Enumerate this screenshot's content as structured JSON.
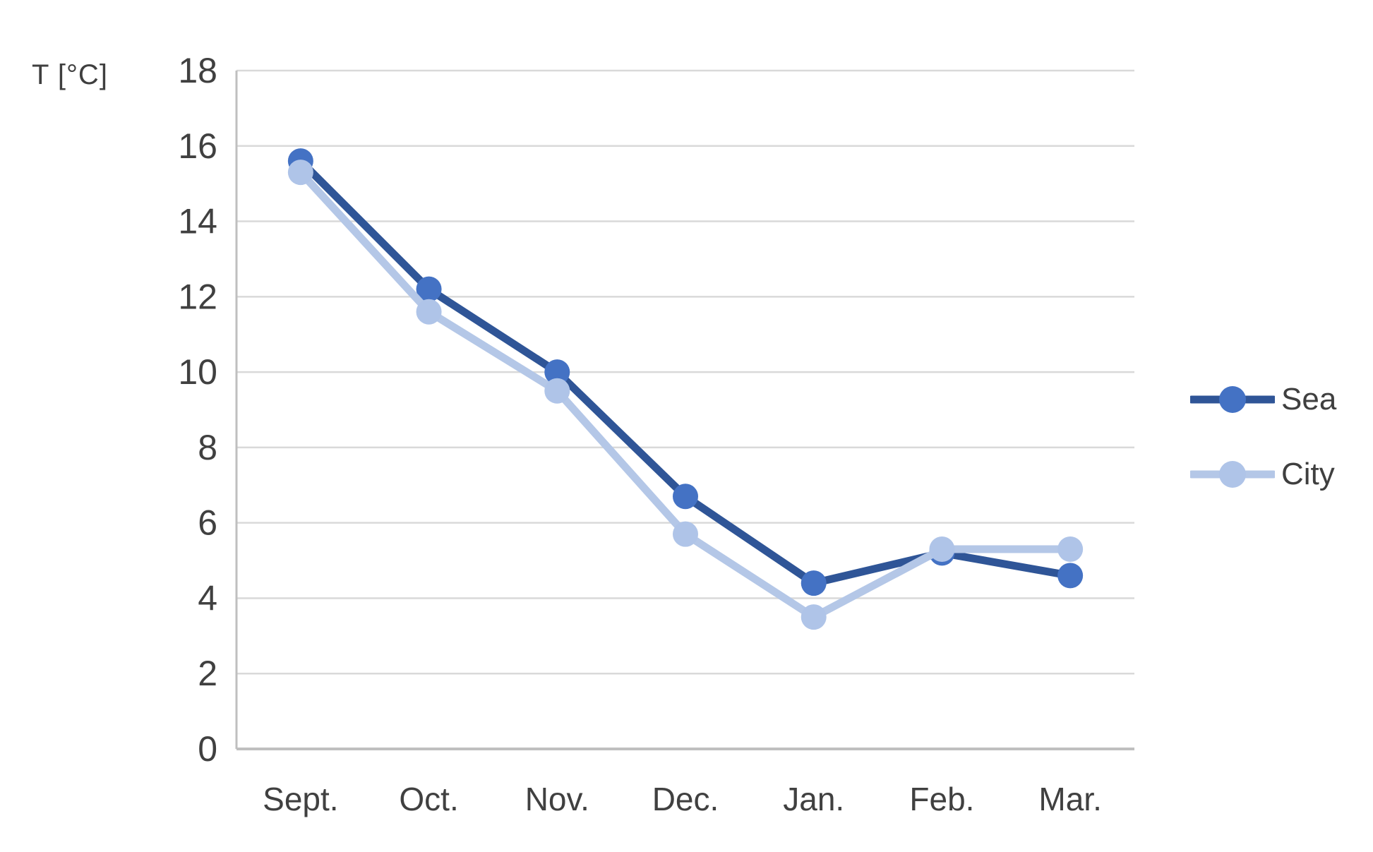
{
  "chart_data": {
    "type": "line",
    "title": "",
    "xlabel": "",
    "ylabel": "T [°C]",
    "categories": [
      "Sept.",
      "Oct.",
      "Nov.",
      "Dec.",
      "Jan.",
      "Feb.",
      "Mar."
    ],
    "series": [
      {
        "name": "Sea",
        "values": [
          15.6,
          12.2,
          10.0,
          6.7,
          4.4,
          5.2,
          4.6
        ],
        "line_color": "#2F5597",
        "marker_color": "#4472C4"
      },
      {
        "name": "City",
        "values": [
          15.3,
          11.6,
          9.5,
          5.7,
          3.5,
          5.3,
          5.3
        ],
        "line_color": "#B4C7E7",
        "marker_color": "#AFC4E8"
      }
    ],
    "ylim": [
      0,
      18
    ],
    "ytick_step": 2,
    "ytick_labels": [
      "0",
      "2",
      "4",
      "6",
      "8",
      "10",
      "12",
      "14",
      "16",
      "18"
    ],
    "grid": "horizontal",
    "legend_position": "right",
    "legend_entries": [
      "Sea",
      "City"
    ]
  },
  "colors": {
    "background": "#FFFFFF",
    "gridline": "#D9D9D9",
    "axis": "#BFBFBF",
    "tick_text": "#404040",
    "legend_text": "#3F3F3F"
  }
}
